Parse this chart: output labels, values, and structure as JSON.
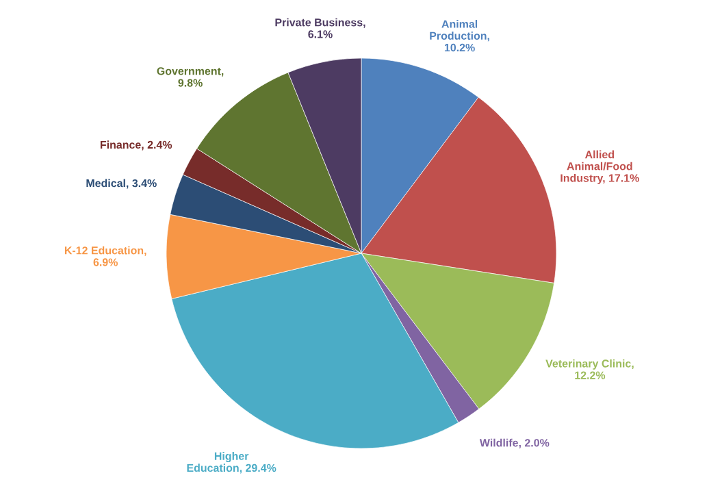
{
  "chart_data": {
    "type": "pie",
    "categories": [
      "Animal\nProduction,\n10.2%",
      "Allied\nAnimal/Food\nIndustry, 17.1%",
      "Veterinary Clinic,\n12.2%",
      "Wildlife, 2.0%",
      "Higher\nEducation, 29.4%",
      "K-12 Education,\n6.9%",
      "Medical, 3.4%",
      "Finance, 2.4%",
      "Government,\n9.8%",
      "Private Business,\n6.1%"
    ],
    "values": [
      10.2,
      17.1,
      12.2,
      2.0,
      29.4,
      6.9,
      3.4,
      2.4,
      9.8,
      6.1
    ],
    "colors": [
      "#4f81bd",
      "#c0504d",
      "#9bbb59",
      "#8064a2",
      "#4bacc6",
      "#f79646",
      "#2c4d75",
      "#772c2a",
      "#5f7530",
      "#4d3b62"
    ],
    "legend": false
  }
}
